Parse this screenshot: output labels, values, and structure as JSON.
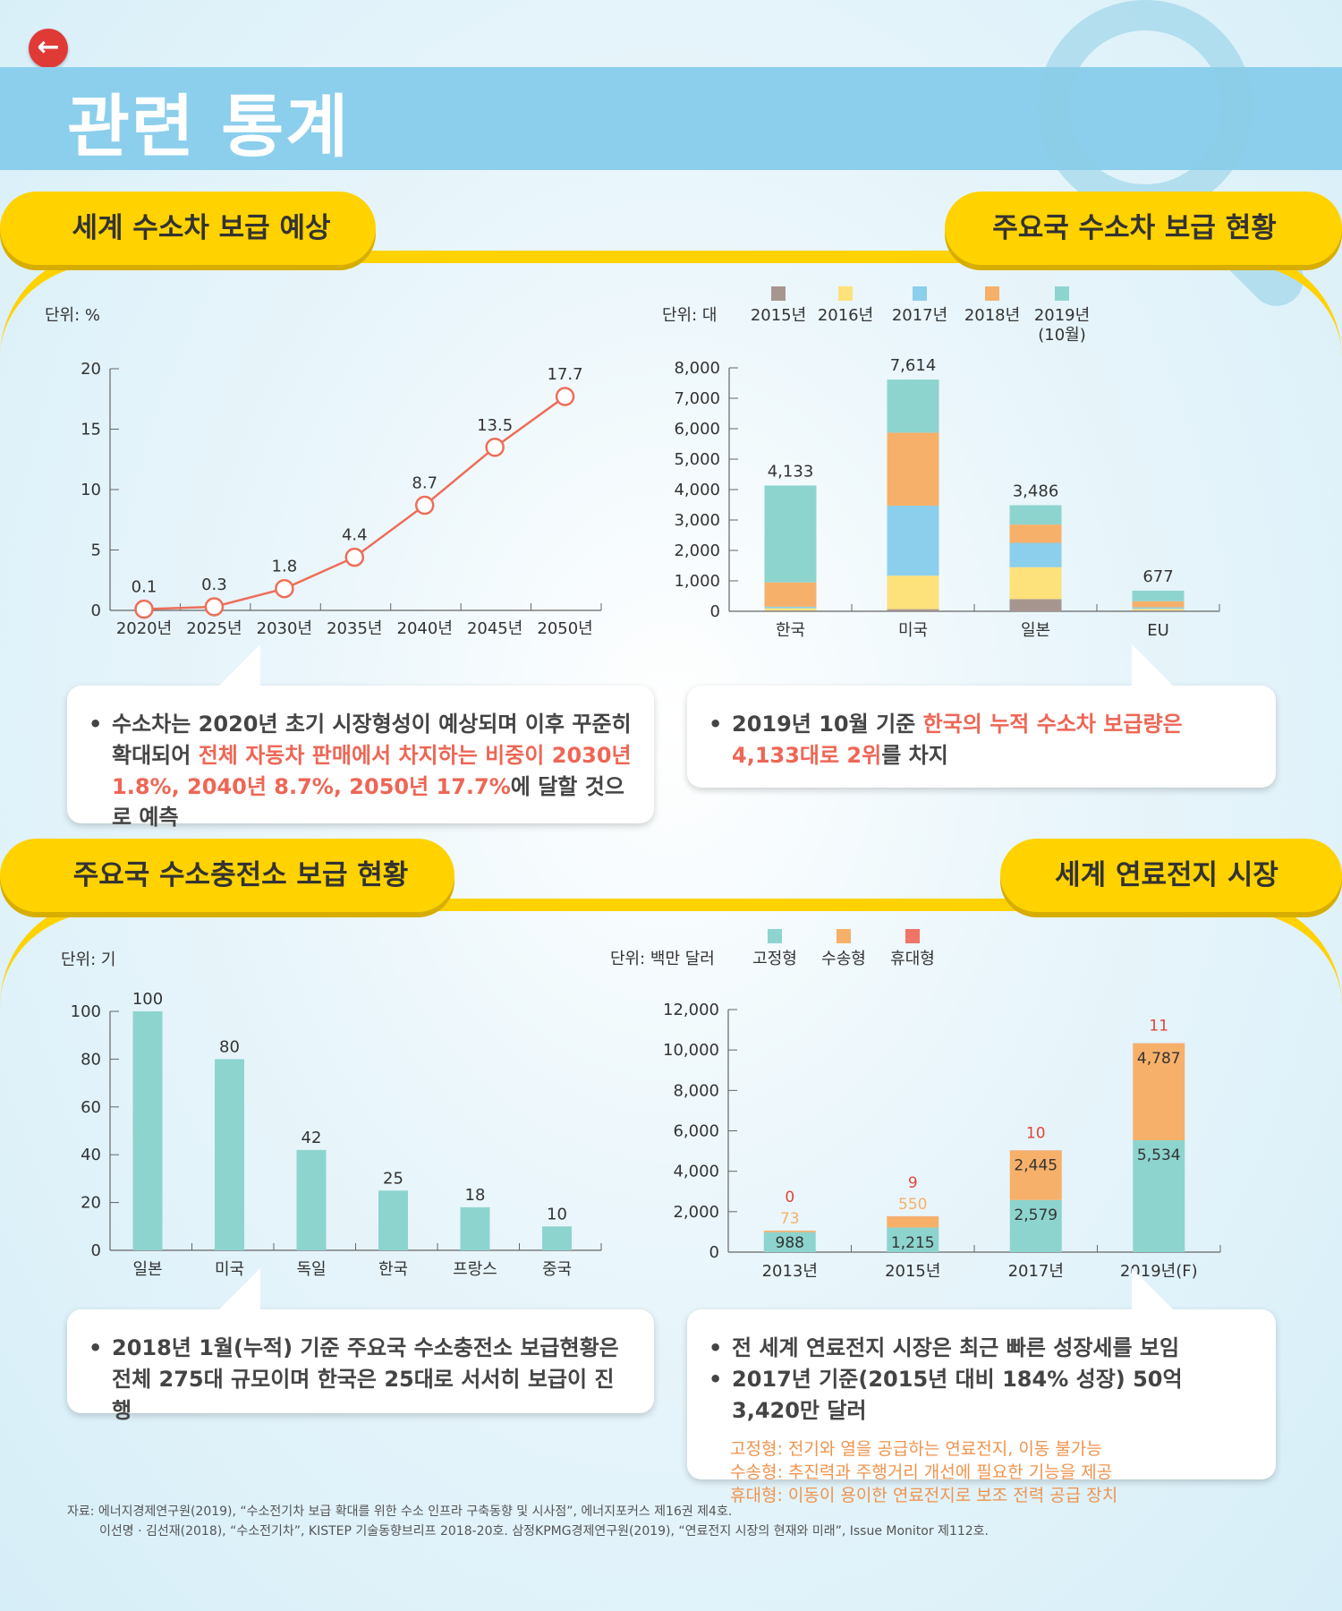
{
  "page": {
    "title": "관련 통계"
  },
  "sections": {
    "s1_title": "세계 수소차 보급 예상",
    "s2_title": "주요국 수소차 보급 현황",
    "s3_title": "주요국 수소충전소 보급 현황",
    "s4_title": "세계 연료전지 시장"
  },
  "colors": {
    "teal": "#8dd4cf",
    "orange": "#f7b069",
    "coral": "#f07566",
    "yellow": "#fde17a",
    "sky": "#8ccfec",
    "taupe": "#a79690",
    "line": "#ee6e58",
    "tab": "#ffd200"
  },
  "chart_data": [
    {
      "type": "line",
      "unit_label": "단위: %",
      "categories": [
        "2020년",
        "2025년",
        "2030년",
        "2035년",
        "2040년",
        "2045년",
        "2050년"
      ],
      "values": [
        0.1,
        0.3,
        1.8,
        4.4,
        8.7,
        13.5,
        17.7
      ],
      "data_labels": [
        "0.1",
        "0.3",
        "1.8",
        "4.4",
        "8.7",
        "13.5",
        "17.7"
      ],
      "ylim": [
        0,
        20
      ],
      "yticks": [
        0,
        5,
        10,
        15,
        20
      ],
      "ytick_labels": [
        "0",
        "5",
        "10",
        "15",
        "20"
      ]
    },
    {
      "type": "bar",
      "stacked": true,
      "unit_label": "단위: 대",
      "categories": [
        "한국",
        "미국",
        "일본",
        "EU"
      ],
      "series": [
        {
          "name": "2015년",
          "values": [
            30,
            70,
            400,
            30
          ]
        },
        {
          "name": "2016년",
          "values": [
            70,
            1100,
            1050,
            50
          ]
        },
        {
          "name": "2017년",
          "values": [
            50,
            2300,
            800,
            50
          ]
        },
        {
          "name": "2018년",
          "values": [
            800,
            2400,
            600,
            200
          ]
        },
        {
          "name": "2019년 (10월)",
          "values": [
            3183,
            1744,
            636,
            347
          ]
        }
      ],
      "legend_label_lines": [
        [
          "2015년"
        ],
        [
          "2016년"
        ],
        [
          "2017년"
        ],
        [
          "2018년"
        ],
        [
          "2019년",
          "(10월)"
        ]
      ],
      "totals": [
        4133,
        7614,
        3486,
        677
      ],
      "total_labels": [
        "4,133",
        "7,614",
        "3,486",
        "677"
      ],
      "ylim": [
        0,
        8000
      ],
      "yticks": [
        0,
        1000,
        2000,
        3000,
        4000,
        5000,
        6000,
        7000,
        8000
      ],
      "ytick_labels": [
        "0",
        "1,000",
        "2,000",
        "3,000",
        "4,000",
        "5,000",
        "6,000",
        "7,000",
        "8,000"
      ]
    },
    {
      "type": "bar",
      "unit_label": "단위: 기",
      "categories": [
        "일본",
        "미국",
        "독일",
        "한국",
        "프랑스",
        "중국"
      ],
      "values": [
        100,
        80,
        42,
        25,
        18,
        10
      ],
      "data_labels": [
        "100",
        "80",
        "42",
        "25",
        "18",
        "10"
      ],
      "ylim": [
        0,
        100
      ],
      "yticks": [
        0,
        20,
        40,
        60,
        80,
        100
      ],
      "ytick_labels": [
        "0",
        "20",
        "40",
        "60",
        "80",
        "100"
      ]
    },
    {
      "type": "bar",
      "stacked": true,
      "unit_label": "단위: 백만 달러",
      "categories": [
        "2013년",
        "2015년",
        "2017년",
        "2019년(F)"
      ],
      "series": [
        {
          "name": "고정형",
          "values": [
            988,
            1215,
            2579,
            5534
          ]
        },
        {
          "name": "수송형",
          "values": [
            73,
            550,
            2445,
            4787
          ]
        },
        {
          "name": "휴대형",
          "values": [
            0,
            9,
            10,
            11
          ]
        }
      ],
      "value_labels": {
        "고정형": [
          "988",
          "1,215",
          "2,579",
          "5,534"
        ],
        "수송형": [
          "73",
          "550",
          "2,445",
          "4,787"
        ],
        "휴대형": [
          "0",
          "9",
          "10",
          "11"
        ]
      },
      "ylim": [
        0,
        12000
      ],
      "yticks": [
        0,
        2000,
        4000,
        6000,
        8000,
        10000,
        12000
      ],
      "ytick_labels": [
        "0",
        "2,000",
        "4,000",
        "6,000",
        "8,000",
        "10,000",
        "12,000"
      ]
    }
  ],
  "bubbles": {
    "b1": {
      "pre": "수소차는 2020년 초기 시장형성이 예상되며 이후 꾸준히 확대되어 ",
      "hl": "전체 자동차 판매에서 차지하는 비중이 2030년 1.8%, 2040년 8.7%, 2050년 17.7%",
      "post": "에 달할 것으로 예측"
    },
    "b2": {
      "pre": "2019년 10월 기준 ",
      "hl": "한국의 누적 수소차 보급량은 4,133대로 2위",
      "post": "를 차지"
    },
    "b3": {
      "text": "2018년 1월(누적) 기준 주요국 수소충전소 보급현황은 전체 275대 규모이며 한국은 25대로 서서히 보급이 진행"
    },
    "b4": {
      "line1": "전 세계 연료전지 시장은 최근 빠른 성장세를 보임",
      "line2": "2017년 기준(2015년 대비 184% 성장) 50억 3,420만 달러",
      "note1": "고정형: 전기와 열을 공급하는 연료전지, 이동 불가능",
      "note2": "수송형: 추진력과 주행거리 개선에 필요한 기능을 제공",
      "note3": "휴대형: 이동이 용이한 연료전지로 보조 전력 공급 장치"
    }
  },
  "source": {
    "line1": "자료: 에너지경제연구원(2019), “수소전기차 보급 확대를 위한 수소 인프라 구축동향 및 시사점”, 에너지포커스 제16권 제4호.",
    "line2": "이선명 · 김선재(2018), “수소전기차”, KISTEP 기술동향브리프 2018-20호. 삼정KPMG경제연구원(2019), “연료전지 시장의 현재와 미래”, Issue Monitor 제112호."
  }
}
